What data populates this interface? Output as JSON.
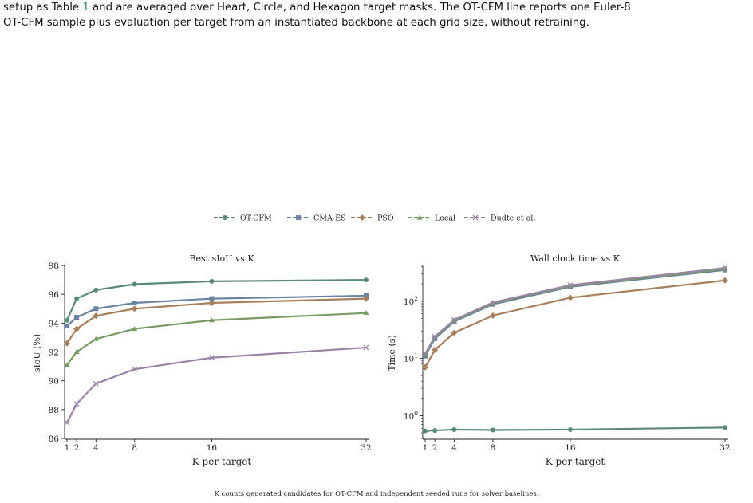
{
  "caption": {
    "line1_pre": "setup as Table ",
    "line1_ref": "1",
    "line1_post": " and are averaged over Heart, Circle, and Hexagon target masks. The OT-CFM line reports one Euler-8",
    "line2": "OT-CFM sample plus evaluation per target from an instantiated backbone at each grid size, without retraining."
  },
  "footnote": "K counts generated candidates for OT-CFM and independent seeded runs for solver baselines.",
  "colors": {
    "OT-CFM": "#5b8a76",
    "CMA-ES": "#6983a0",
    "PSO": "#a67f5d",
    "Local": "#779b62",
    "Dudte et al.": "#9883a4"
  },
  "legend": [
    {
      "name": "OT-CFM",
      "marker": "circle"
    },
    {
      "name": "CMA-ES",
      "marker": "square"
    },
    {
      "name": "PSO",
      "marker": "diamond"
    },
    {
      "name": "Local",
      "marker": "triangle"
    },
    {
      "name": "Dudte et al.",
      "marker": "x"
    }
  ],
  "chart_data": [
    {
      "type": "line",
      "title": "Best sIoU vs K",
      "xlabel": "K per target",
      "ylabel": "sIoU (%)",
      "x": [
        1,
        2,
        4,
        8,
        16,
        32
      ],
      "xticks": [
        "1",
        "2",
        "4",
        "8",
        "16",
        "32"
      ],
      "ylim": [
        86,
        98
      ],
      "yticks": [
        "86",
        "88",
        "90",
        "92",
        "94",
        "96",
        "98"
      ],
      "series": [
        {
          "name": "OT-CFM",
          "values": [
            94.2,
            95.7,
            96.3,
            96.7,
            96.9,
            97.0
          ]
        },
        {
          "name": "CMA-ES",
          "values": [
            93.8,
            94.4,
            95.0,
            95.4,
            95.7,
            95.9
          ]
        },
        {
          "name": "PSO",
          "values": [
            92.6,
            93.6,
            94.5,
            95.0,
            95.4,
            95.7
          ]
        },
        {
          "name": "Local",
          "values": [
            91.1,
            92.0,
            92.9,
            93.6,
            94.2,
            94.7
          ]
        },
        {
          "name": "Dudte et al.",
          "values": [
            87.1,
            88.4,
            89.8,
            90.8,
            91.6,
            92.3
          ]
        }
      ]
    },
    {
      "type": "line",
      "title": "Wall clock time vs K",
      "xlabel": "K per target",
      "ylabel": "Time (s)",
      "yscale": "log",
      "x": [
        1,
        2,
        4,
        8,
        16,
        32
      ],
      "xticks": [
        "1",
        "2",
        "4",
        "8",
        "16",
        "32"
      ],
      "ylim": [
        0.4,
        420
      ],
      "yticks": [
        {
          "value": 1,
          "base": "10",
          "exp": "0"
        },
        {
          "value": 10,
          "base": "10",
          "exp": "1"
        },
        {
          "value": 100,
          "base": "10",
          "exp": "2"
        }
      ],
      "series": [
        {
          "name": "OT-CFM",
          "values": [
            0.54,
            0.55,
            0.57,
            0.56,
            0.57,
            0.62
          ]
        },
        {
          "name": "CMA-ES",
          "values": [
            11,
            22,
            44,
            88,
            178,
            350
          ]
        },
        {
          "name": "PSO",
          "values": [
            7,
            14,
            28,
            56,
            115,
            230
          ]
        },
        {
          "name": "Local",
          "values": [
            11.5,
            23,
            46,
            92,
            184,
            365
          ]
        },
        {
          "name": "Dudte et al.",
          "values": [
            12,
            24,
            47,
            95,
            190,
            380
          ]
        }
      ]
    }
  ]
}
